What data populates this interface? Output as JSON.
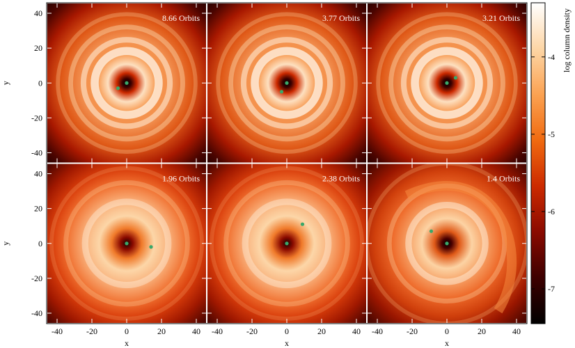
{
  "chart_data": {
    "type": "heatmap",
    "xlabel": "x",
    "ylabel": "y",
    "xlim": [
      -46,
      46
    ],
    "ylim": [
      -46,
      46
    ],
    "x_ticks": [
      -40,
      -20,
      0,
      20,
      40
    ],
    "y_ticks": [
      -40,
      -20,
      0,
      20,
      40
    ],
    "colorbar": {
      "label": "log column density",
      "range": [
        -7.45,
        -3.3
      ],
      "ticks": [
        -4,
        -5,
        -6,
        -7
      ],
      "colors": [
        "#000000",
        "#3d0000",
        "#8a0a00",
        "#cc2a00",
        "#f06a10",
        "#fba252",
        "#fdd6a6",
        "#ffffff"
      ]
    },
    "panels": [
      {
        "label": "8.66 Orbits",
        "planet": [
          -5,
          -3
        ],
        "profile": "compact"
      },
      {
        "label": "3.77 Orbits",
        "planet": [
          -3,
          -5
        ],
        "profile": "compact"
      },
      {
        "label": "3.21 Orbits",
        "planet": [
          5,
          3
        ],
        "profile": "compact"
      },
      {
        "label": "1.96 Orbits",
        "planet": [
          14,
          -2
        ],
        "profile": "wide"
      },
      {
        "label": "2.38 Orbits",
        "planet": [
          9,
          11
        ],
        "profile": "wide"
      },
      {
        "label": "1.4 Orbits",
        "planet": [
          -9,
          7
        ],
        "profile": "spiral"
      }
    ],
    "star_marker_color": "#3aa86a",
    "planet_marker_color": "#3aa86a"
  }
}
